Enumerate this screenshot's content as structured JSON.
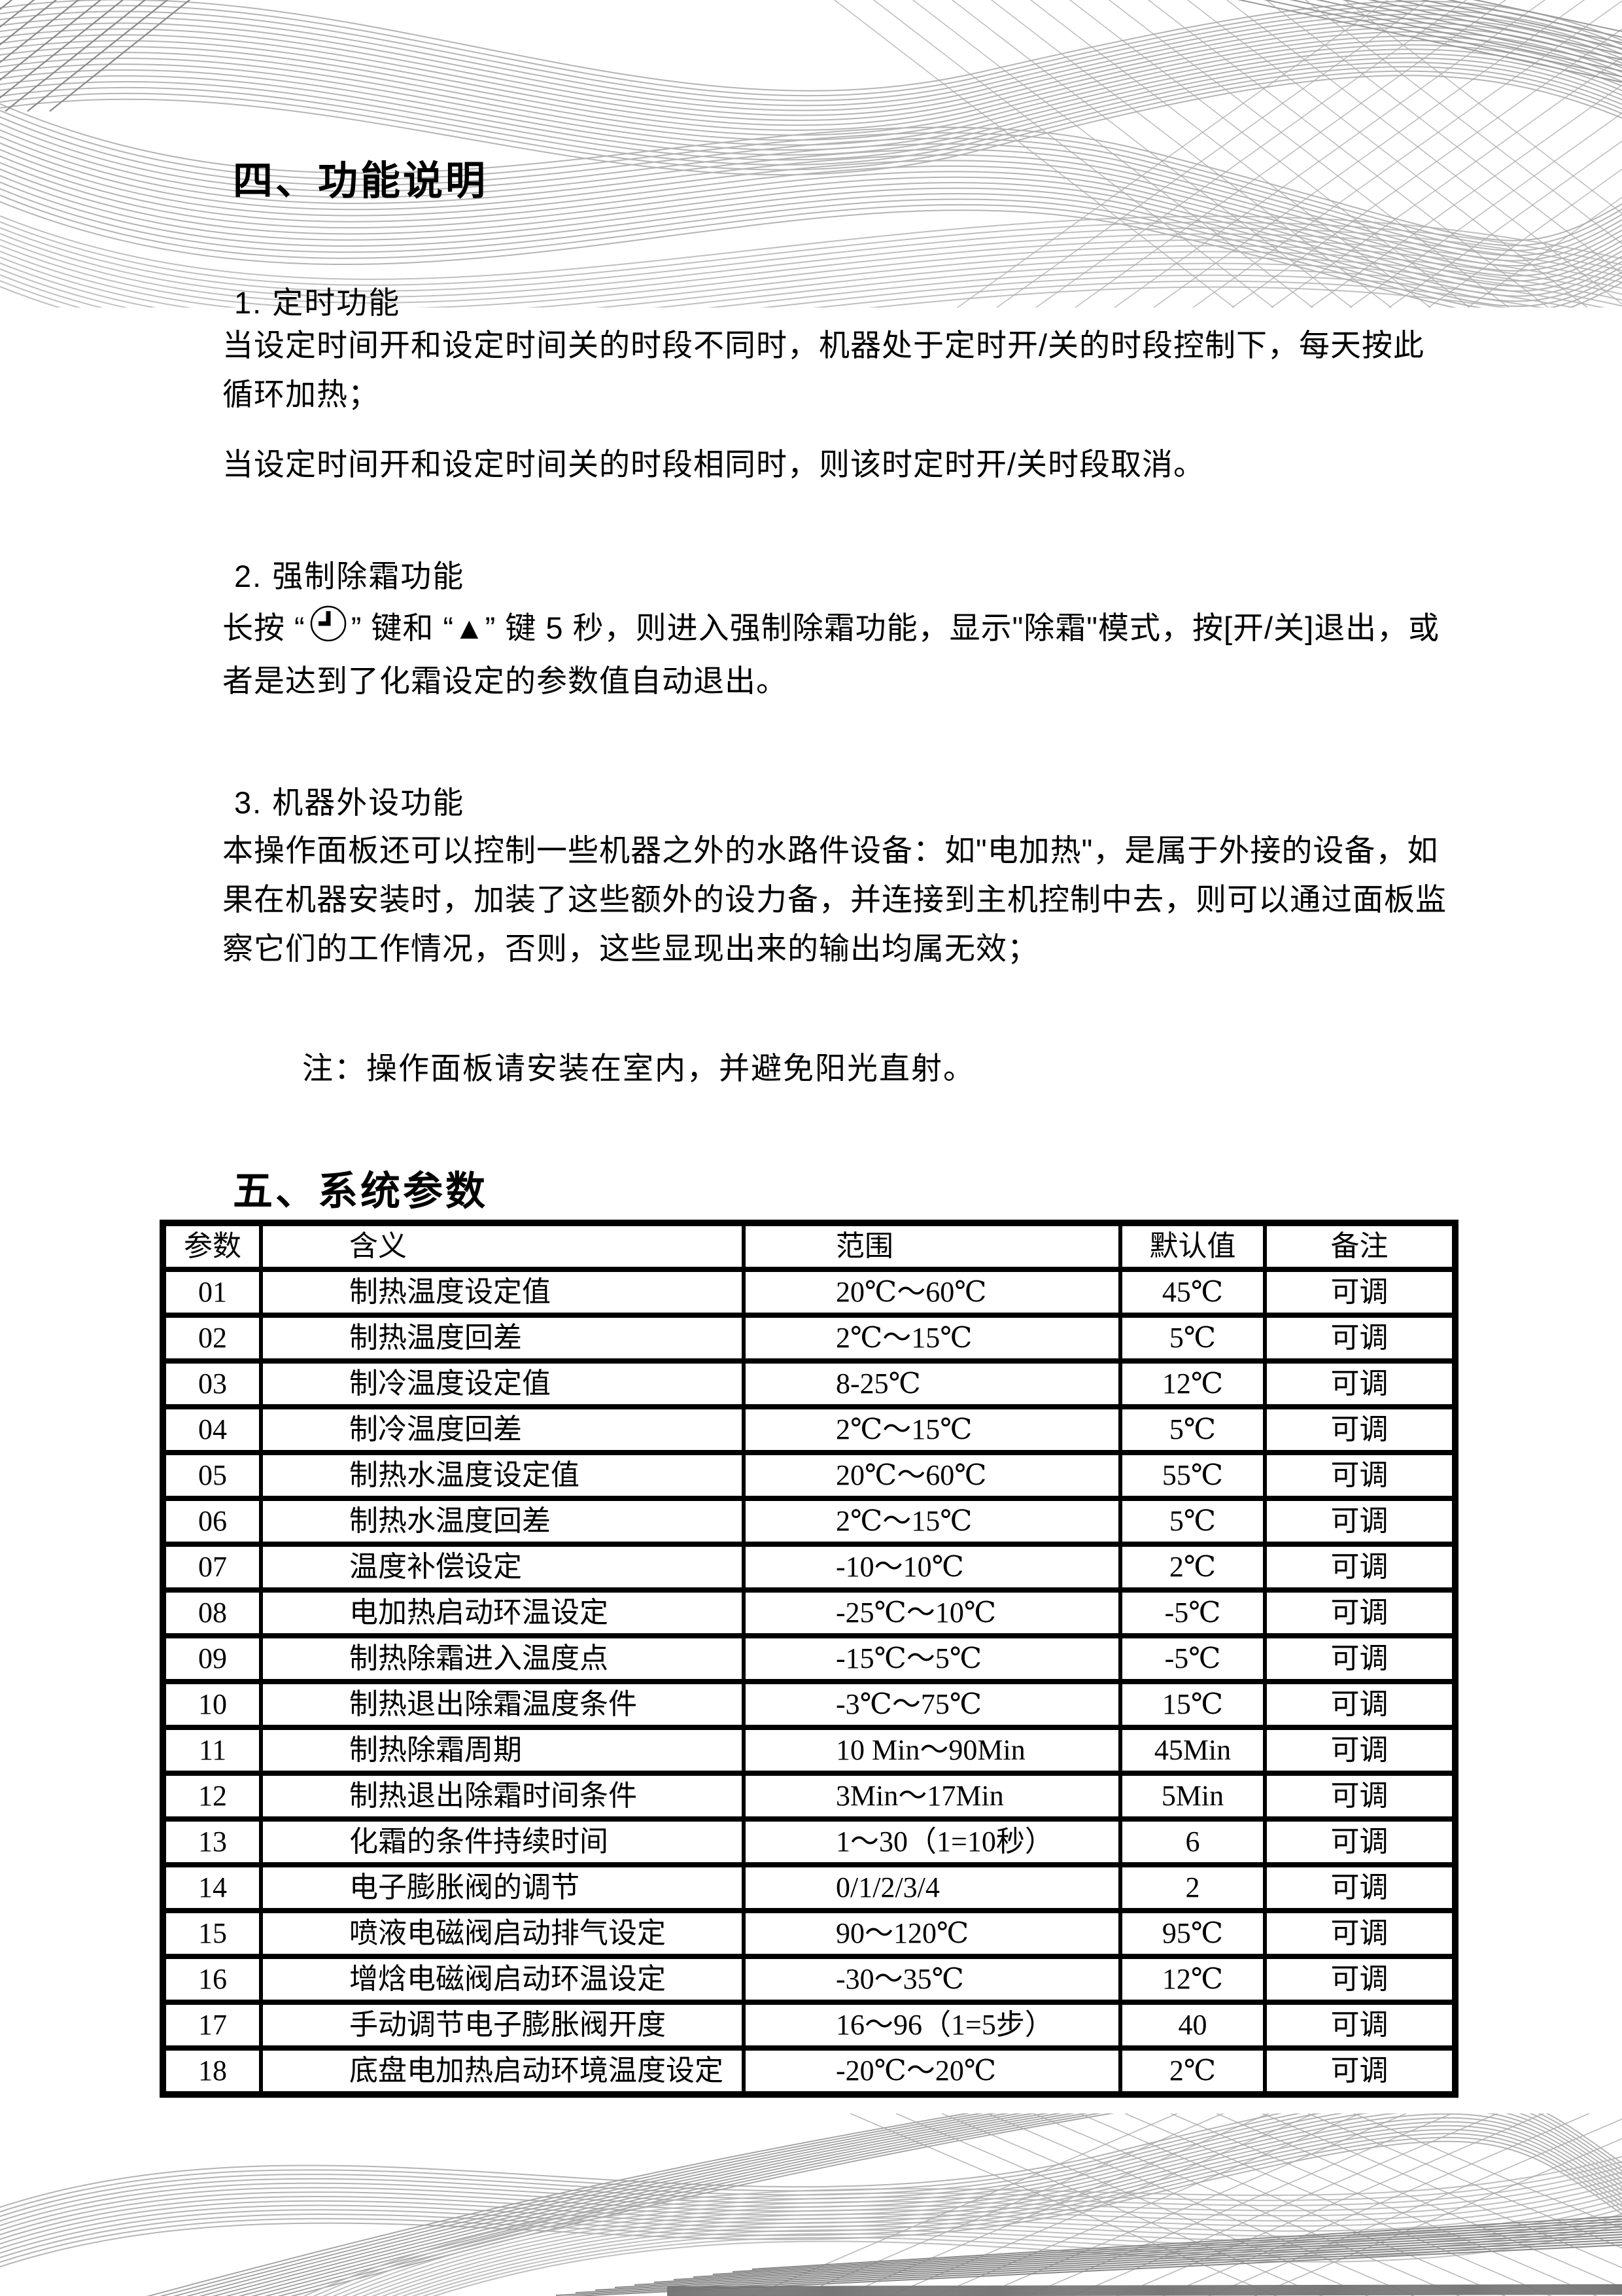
{
  "page": {
    "section4_title": "四、功能说明",
    "section5_title": "五、系统参数",
    "note": "注：操作面板请安装在室内，并避免阳光直射。"
  },
  "functions": {
    "item1": {
      "heading": "1. 定时功能",
      "para1": "当设定时间开和设定时间关的时段不同时，机器处于定时开/关的时段控制下，每天按此循环加热；",
      "para2": "当设定时间开和设定时间关的时段相同时，则该时定时开/关时段取消。"
    },
    "item2": {
      "heading": "2. 强制除霜功能",
      "para_prefix": "长按 “",
      "icon": "clock-key-icon",
      "para_suffix": "” 键和 “▲” 键 5 秒，则进入强制除霜功能，显示\"除霜\"模式，按[开/关]退出，或者是达到了化霜设定的参数值自动退出。"
    },
    "item3": {
      "heading": "3. 机器外设功能",
      "para1": "本操作面板还可以控制一些机器之外的水路件设备：如\"电加热\"，是属于外接的设备，如果在机器安装时，加装了这些额外的设力备，并连接到主机控制中去，则可以通过面板监察它们的工作情况，否则，这些显现出来的输出均属无效；"
    }
  },
  "table": {
    "headers": [
      "参数",
      "含义",
      "范围",
      "默认值",
      "备注"
    ],
    "rows": [
      [
        "01",
        "制热温度设定值",
        "20℃～60℃",
        "45℃",
        "可调"
      ],
      [
        "02",
        "制热温度回差",
        "2℃～15℃",
        "5℃",
        "可调"
      ],
      [
        "03",
        "制冷温度设定值",
        "8-25℃",
        "12℃",
        "可调"
      ],
      [
        "04",
        "制冷温度回差",
        "2℃～15℃",
        "5℃",
        "可调"
      ],
      [
        "05",
        "制热水温度设定值",
        "20℃～60℃",
        "55℃",
        "可调"
      ],
      [
        "06",
        "制热水温度回差",
        "2℃～15℃",
        "5℃",
        "可调"
      ],
      [
        "07",
        "温度补偿设定",
        "-10～10℃",
        "2℃",
        "可调"
      ],
      [
        "08",
        "电加热启动环温设定",
        "-25℃～10℃",
        "-5℃",
        "可调"
      ],
      [
        "09",
        "制热除霜进入温度点",
        "-15℃～5℃",
        "-5℃",
        "可调"
      ],
      [
        "10",
        "制热退出除霜温度条件",
        "-3℃～75℃",
        "15℃",
        "可调"
      ],
      [
        "11",
        "制热除霜周期",
        "10 Min～90Min",
        "45Min",
        "可调"
      ],
      [
        "12",
        "制热退出除霜时间条件",
        "3Min～17Min",
        "5Min",
        "可调"
      ],
      [
        "13",
        "化霜的条件持续时间",
        "1～30（1=10秒）",
        "6",
        "可调"
      ],
      [
        "14",
        "电子膨胀阀的调节",
        "0/1/2/3/4",
        "2",
        "可调"
      ],
      [
        "15",
        "喷液电磁阀启动排气设定",
        "90～120℃",
        "95℃",
        "可调"
      ],
      [
        "16",
        "增焓电磁阀启动环温设定",
        "-30～35℃",
        "12℃",
        "可调"
      ],
      [
        "17",
        "手动调节电子膨胀阀开度",
        "16～96（1=5步）",
        "40",
        "可调"
      ],
      [
        "18",
        "底盘电加热启动环境温度设定",
        "-20℃～20℃",
        "2℃",
        "可调"
      ]
    ]
  },
  "colors": {
    "text": "#000000",
    "background": "#ffffff",
    "deco_line": "#b4b4b4",
    "deco_line_dark": "#888888"
  }
}
